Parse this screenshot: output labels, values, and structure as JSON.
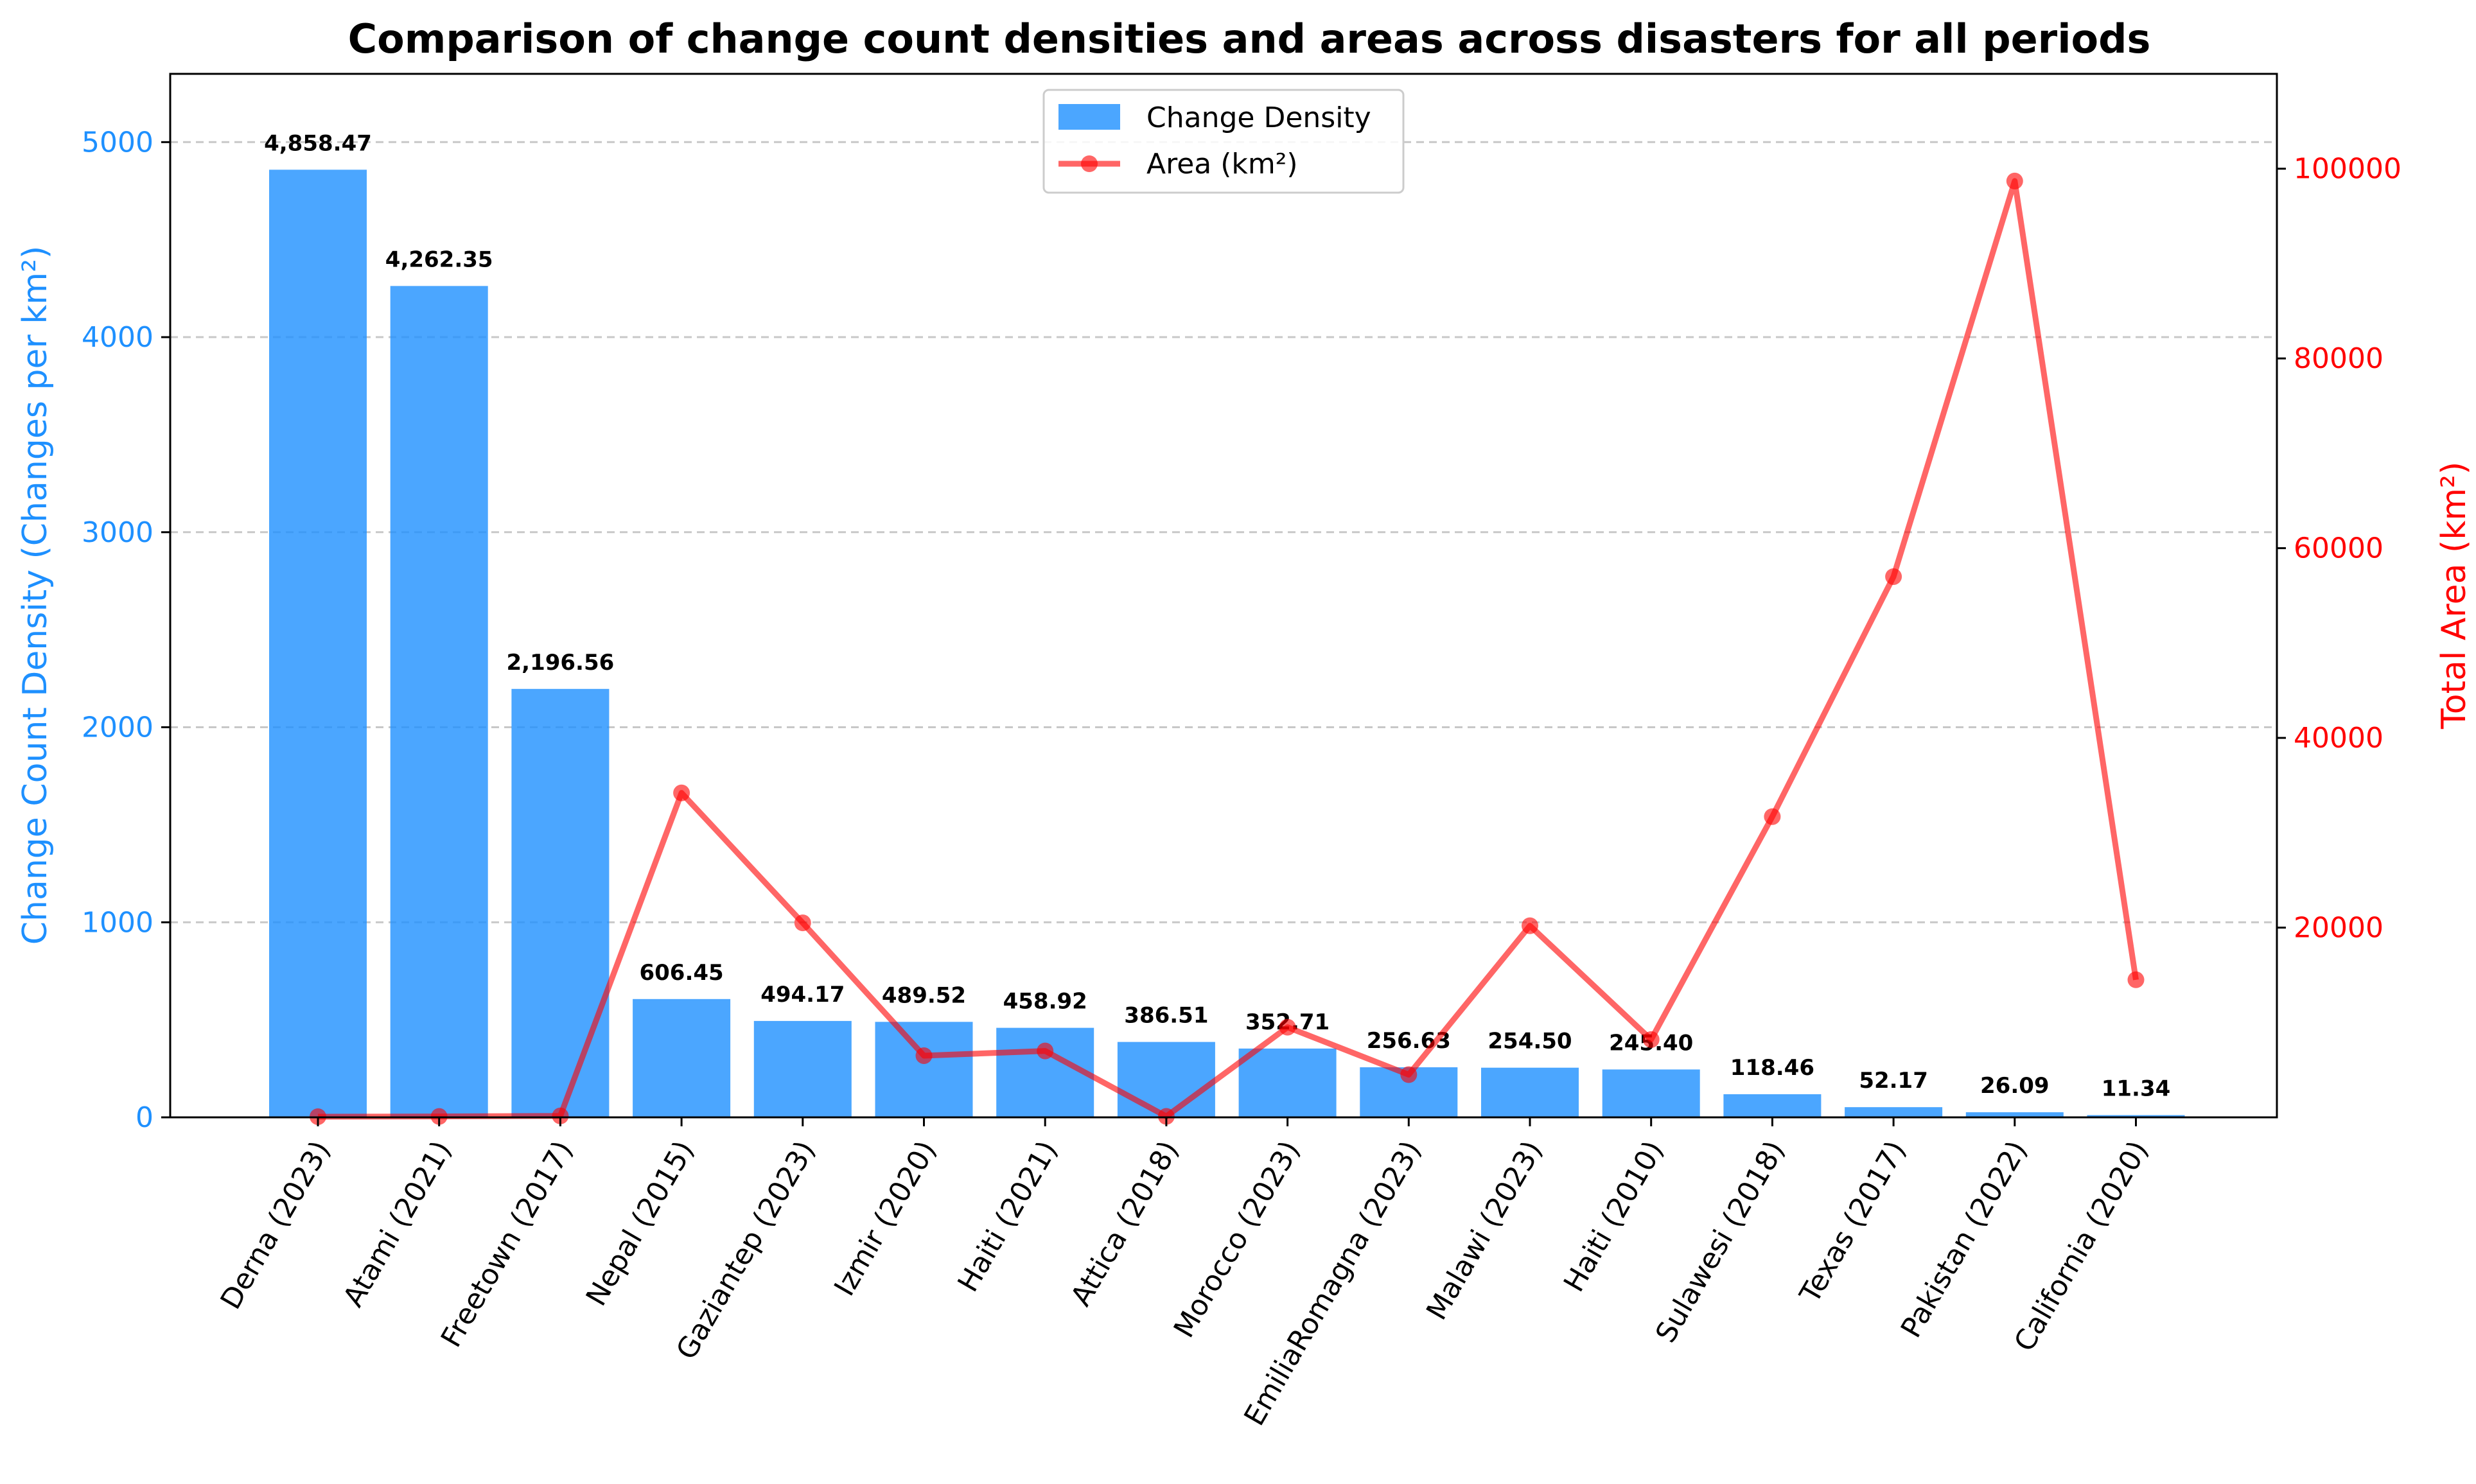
{
  "chart_data": {
    "type": "bar",
    "title": "Comparison of change count densities and areas across disasters for all periods",
    "categories": [
      "Derna (2023)",
      "Atami (2021)",
      "Freetown (2017)",
      "Nepal (2015)",
      "Gaziantep (2023)",
      "Izmir (2020)",
      "Haiti (2021)",
      "Attica (2018)",
      "Morocco (2023)",
      "EmiliaRomagna (2023)",
      "Malawi (2023)",
      "Haiti (2010)",
      "Sulawesi (2018)",
      "Texas (2017)",
      "Pakistan (2022)",
      "California (2020)"
    ],
    "series": [
      {
        "name": "Change Density",
        "type": "bar",
        "axis": "left",
        "color": "#1E90FF",
        "values": [
          4858.47,
          4262.35,
          2196.56,
          606.45,
          494.17,
          489.52,
          458.92,
          386.51,
          352.71,
          256.63,
          254.5,
          245.4,
          118.46,
          52.17,
          26.09,
          11.34
        ],
        "labels": [
          "4,858.47",
          "4,262.35",
          "2,196.56",
          "606.45",
          "494.17",
          "489.52",
          "458.92",
          "386.51",
          "352.71",
          "256.63",
          "254.50",
          "245.40",
          "118.46",
          "52.17",
          "26.09",
          "11.34"
        ]
      },
      {
        "name": "Area (km²)",
        "type": "line",
        "axis": "right",
        "color": "#FF0000",
        "values": [
          70,
          90,
          150,
          34200,
          20500,
          6500,
          7000,
          100,
          9500,
          4500,
          20200,
          8200,
          31700,
          57000,
          98700,
          14500
        ]
      }
    ],
    "ylabel_left": "Change Count Density (Changes per km²)",
    "ylabel_right": "Total Area (km²)",
    "ylim_left": [
      0,
      5350
    ],
    "ylim_right": [
      0,
      110000
    ],
    "yticks_left": [
      0,
      1000,
      2000,
      3000,
      4000,
      5000
    ],
    "yticks_right": [
      20000,
      40000,
      60000,
      80000,
      100000
    ],
    "grid": "horizontal dashed",
    "legend": "top-center"
  }
}
